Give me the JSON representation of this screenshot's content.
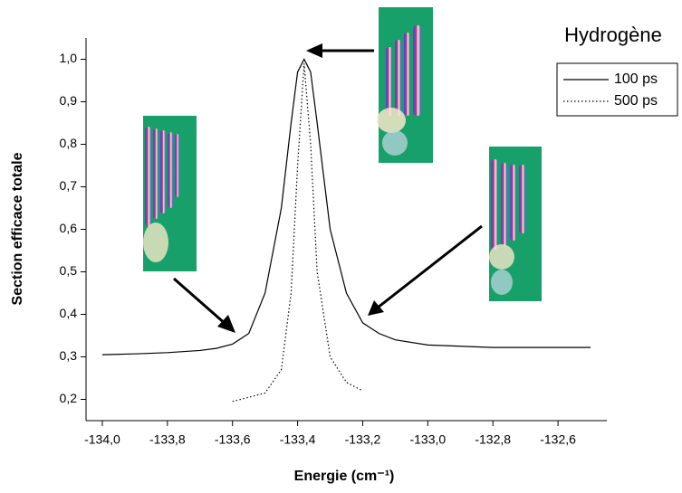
{
  "chart_data": {
    "type": "line",
    "title": "Hydrogène",
    "x_label": "Energie (cm⁻¹)",
    "y_label": "Section efficace totale",
    "xlim": [
      -134.05,
      -132.45
    ],
    "ylim": [
      0.15,
      1.05
    ],
    "xticks": [
      {
        "value": -134.0,
        "label": "-134,0"
      },
      {
        "value": -133.8,
        "label": "-133,8"
      },
      {
        "value": -133.6,
        "label": "-133,6"
      },
      {
        "value": -133.4,
        "label": "-133,4"
      },
      {
        "value": -133.2,
        "label": "-133,2"
      },
      {
        "value": -133.0,
        "label": "-133,0"
      },
      {
        "value": -132.8,
        "label": "-132,8"
      },
      {
        "value": -132.6,
        "label": "-132,6"
      }
    ],
    "yticks": [
      {
        "value": 0.2,
        "label": "0,2"
      },
      {
        "value": 0.3,
        "label": "0,3"
      },
      {
        "value": 0.4,
        "label": "0,4"
      },
      {
        "value": 0.5,
        "label": "0,5"
      },
      {
        "value": 0.6,
        "label": "0,6"
      },
      {
        "value": 0.7,
        "label": "0,7"
      },
      {
        "value": 0.8,
        "label": "0,8"
      },
      {
        "value": 0.9,
        "label": "0,9"
      },
      {
        "value": 1.0,
        "label": "1,0"
      }
    ],
    "series": [
      {
        "name": "100 ps",
        "color": "#000000",
        "dash": "none",
        "x": [
          -134.0,
          -133.9,
          -133.8,
          -133.7,
          -133.65,
          -133.6,
          -133.55,
          -133.5,
          -133.45,
          -133.42,
          -133.4,
          -133.38,
          -133.36,
          -133.34,
          -133.3,
          -133.25,
          -133.2,
          -133.15,
          -133.1,
          -133.0,
          -132.8,
          -132.5
        ],
        "values": [
          0.305,
          0.307,
          0.31,
          0.315,
          0.32,
          0.33,
          0.355,
          0.45,
          0.65,
          0.85,
          0.97,
          1.0,
          0.97,
          0.85,
          0.6,
          0.45,
          0.38,
          0.355,
          0.34,
          0.328,
          0.322,
          0.322
        ]
      },
      {
        "name": "500 ps",
        "color": "#000000",
        "dash": "1.5 2.5",
        "x": [
          -133.6,
          -133.5,
          -133.45,
          -133.42,
          -133.4,
          -133.38,
          -133.36,
          -133.34,
          -133.3,
          -133.25,
          -133.2
        ],
        "values": [
          0.195,
          0.215,
          0.27,
          0.45,
          0.75,
          0.99,
          0.8,
          0.5,
          0.3,
          0.24,
          0.22
        ]
      }
    ]
  }
}
